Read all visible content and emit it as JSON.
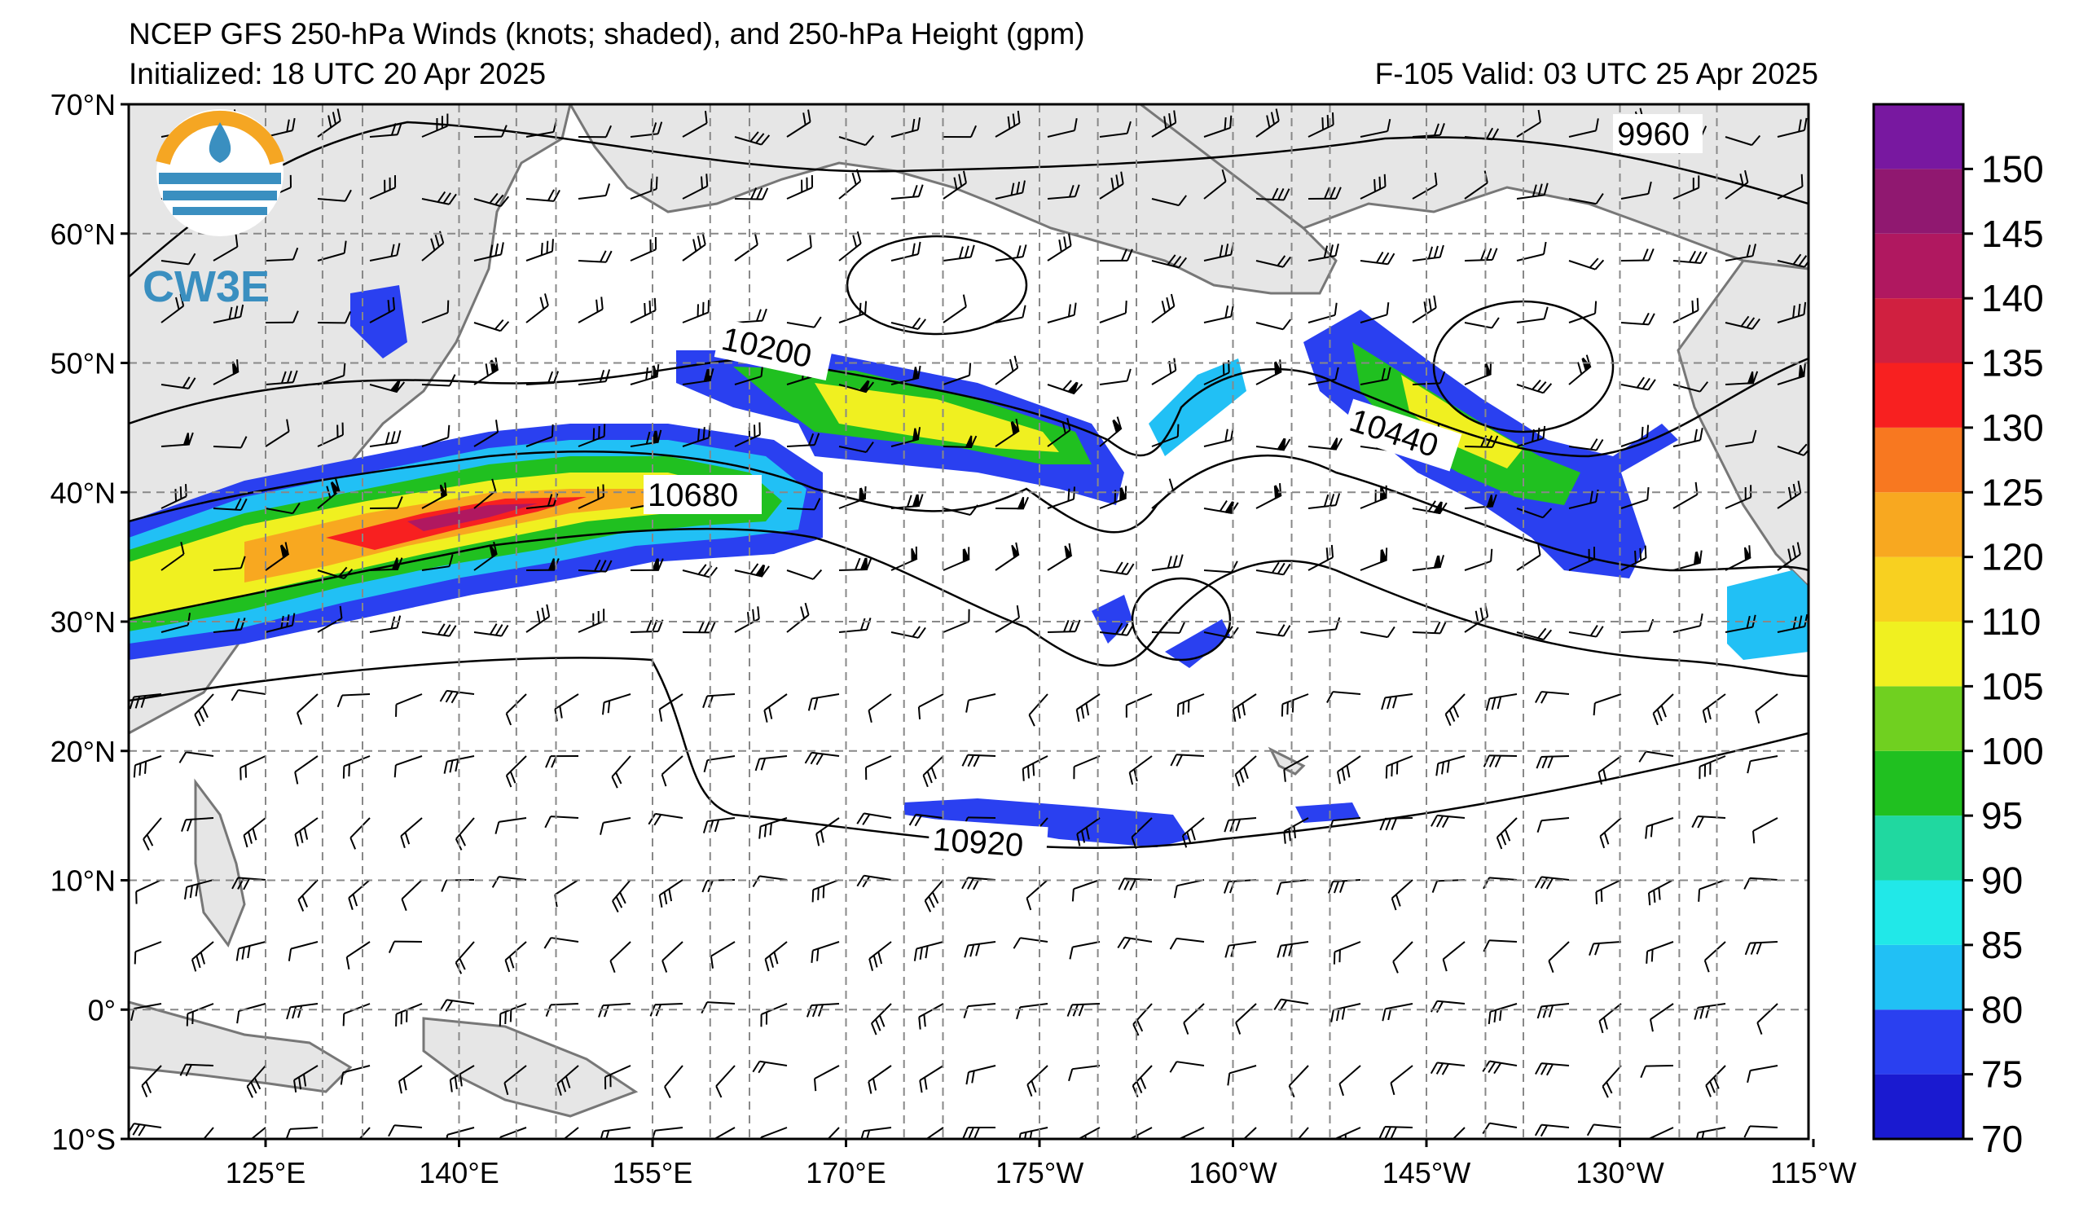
{
  "header": {
    "title": "NCEP GFS 250-hPa Winds (knots; shaded), and 250-hPa Height (gpm)",
    "initialized": "Initialized: 18 UTC 20 Apr 2025",
    "valid": "F-105  Valid: 03 UTC 25 Apr 2025"
  },
  "logo": {
    "text": "CW3E",
    "color": "#3a8fc0",
    "accent": "#f5a623"
  },
  "axes": {
    "lat_labels": [
      "70°N",
      "60°N",
      "50°N",
      "40°N",
      "30°N",
      "20°N",
      "10°N",
      "0°",
      "10°S"
    ],
    "lon_labels": [
      "125°E",
      "140°E",
      "155°E",
      "170°E",
      "175°W",
      "160°W",
      "145°W",
      "130°W",
      "115°W"
    ]
  },
  "contour_labels": [
    "9960",
    "10200",
    "10440",
    "10680",
    "10920"
  ],
  "colorbar": {
    "labels": [
      "70",
      "75",
      "80",
      "85",
      "90",
      "95",
      "100",
      "105",
      "110",
      "120",
      "125",
      "130",
      "135",
      "140",
      "145",
      "150"
    ],
    "colors": [
      "#1a1ad0",
      "#2a40f0",
      "#21c0f5",
      "#21e8e8",
      "#20d8a0",
      "#20c020",
      "#70d020",
      "#f0f020",
      "#f8d020",
      "#f8a820",
      "#f87820",
      "#f82020",
      "#d02040",
      "#b01860",
      "#901870",
      "#7818a0"
    ]
  }
}
